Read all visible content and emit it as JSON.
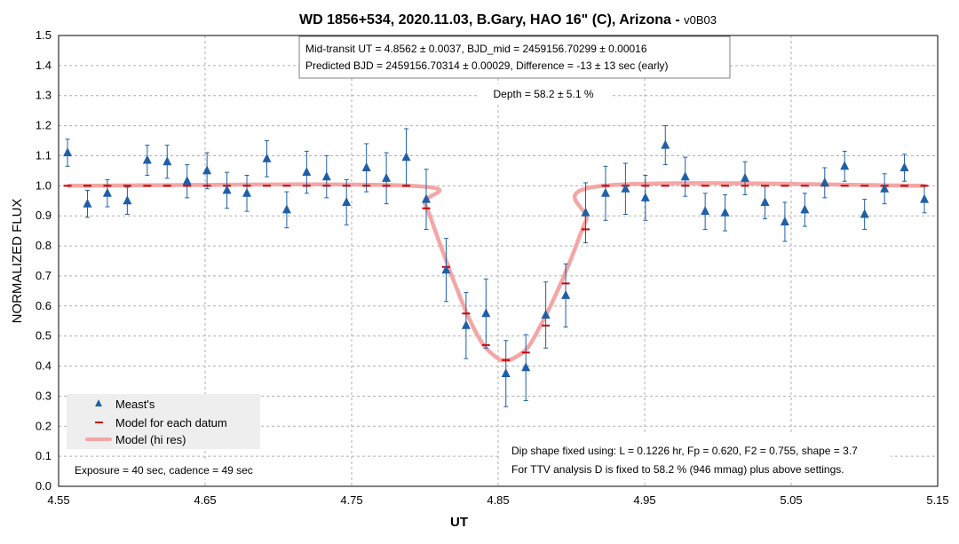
{
  "chart_data": {
    "type": "scatter",
    "title": "WD 1856+534, 2020.11.03, B.Gary, HAO 16\" (C), Arizona - ",
    "title_suffix": "v0B03",
    "xlabel": "UT",
    "ylabel": "NORMALIZED FLUX",
    "xlim": [
      4.55,
      5.15
    ],
    "ylim": [
      0.0,
      1.5
    ],
    "x_ticks": [
      "4.55",
      "4.65",
      "4.75",
      "4.85",
      "4.95",
      "5.05",
      "5.15"
    ],
    "y_ticks": [
      "0.0",
      "0.1",
      "0.2",
      "0.3",
      "0.4",
      "0.5",
      "0.6",
      "0.7",
      "0.8",
      "0.9",
      "1.0",
      "1.1",
      "1.2",
      "1.3",
      "1.4",
      "1.5"
    ],
    "grid": true,
    "legend_position": "bottom-left",
    "legend": {
      "measts": "Meast's",
      "model_datum": "Model for each datum",
      "model_hires": "Model (hi res)"
    },
    "info_box": {
      "line1": "Mid-transit UT = 4.8562 ± 0.0037, BJD_mid = 2459156.70299 ± 0.00016",
      "line2": "Predicted BJD = 2459156.70314 ± 0.00029, Difference = -13 ± 13 sec (early)"
    },
    "depth_label": "Depth = 58.2 ± 5.1 %",
    "exposure_note": "Exposure = 40 sec, cadence = 49 sec",
    "dip_note": {
      "line1": "Dip shape fixed using:  L = 0.1226 hr, Fp = 0.620, F2 = 0.755, shape = 3.7",
      "line2": "For TTV analysis D is fixed  to 58.2 % (946 mmag) plus above settings."
    },
    "colors": {
      "measts": "#1f5fa8",
      "model_datum": "#cc0000",
      "model_hires": "#f4a6a6",
      "grid": "#b0b0b0",
      "legend_bg": "#eeeeee"
    },
    "series": [
      {
        "name": "Meast's",
        "x": [
          4.5561,
          4.5697,
          4.5833,
          4.5969,
          4.6105,
          4.6241,
          4.6377,
          4.6513,
          4.6649,
          4.6785,
          4.6921,
          4.7057,
          4.7193,
          4.7329,
          4.7465,
          4.7601,
          4.7737,
          4.7873,
          4.8009,
          4.8145,
          4.8281,
          4.8417,
          4.8553,
          4.8689,
          4.8825,
          4.8961,
          4.9097,
          4.9233,
          4.9369,
          4.9505,
          4.9641,
          4.9777,
          4.9913,
          5.0049,
          5.0185,
          5.0321,
          5.0457,
          5.0593,
          5.0729,
          5.0865,
          5.1001,
          5.1137,
          5.1273,
          5.1409
        ],
        "y": [
          1.11,
          0.94,
          0.975,
          0.95,
          1.085,
          1.08,
          1.015,
          1.05,
          0.985,
          0.975,
          1.09,
          0.92,
          1.045,
          1.03,
          0.945,
          1.06,
          1.025,
          1.095,
          0.955,
          0.72,
          0.535,
          0.575,
          0.375,
          0.395,
          0.57,
          0.635,
          0.91,
          0.975,
          0.99,
          0.96,
          1.135,
          1.03,
          0.915,
          0.91,
          1.025,
          0.945,
          0.88,
          0.92,
          1.01,
          1.065,
          0.905,
          0.99,
          1.06,
          0.955
        ],
        "err": [
          0.045,
          0.045,
          0.045,
          0.045,
          0.05,
          0.055,
          0.055,
          0.06,
          0.06,
          0.06,
          0.06,
          0.06,
          0.07,
          0.07,
          0.075,
          0.08,
          0.085,
          0.095,
          0.1,
          0.105,
          0.11,
          0.115,
          0.11,
          0.11,
          0.11,
          0.105,
          0.1,
          0.09,
          0.085,
          0.075,
          0.065,
          0.065,
          0.06,
          0.06,
          0.055,
          0.055,
          0.065,
          0.055,
          0.05,
          0.05,
          0.05,
          0.05,
          0.045,
          0.045
        ]
      },
      {
        "name": "Model for each datum",
        "x": [
          4.5561,
          4.5697,
          4.5833,
          4.5969,
          4.6105,
          4.6241,
          4.6377,
          4.6513,
          4.6649,
          4.6785,
          4.6921,
          4.7057,
          4.7193,
          4.7329,
          4.7465,
          4.7601,
          4.7737,
          4.7873,
          4.8009,
          4.8145,
          4.8281,
          4.8417,
          4.8553,
          4.8689,
          4.8825,
          4.8961,
          4.9097,
          4.9233,
          4.9369,
          4.9505,
          4.9641,
          4.9777,
          4.9913,
          5.0049,
          5.0185,
          5.0321,
          5.0457,
          5.0593,
          5.0729,
          5.0865,
          5.1001,
          5.1137,
          5.1273,
          5.1409
        ],
        "y": [
          1.0,
          1.0,
          1.0,
          1.0,
          1.0,
          1.0,
          1.0,
          1.0,
          1.0,
          1.0,
          1.0,
          1.0,
          1.0,
          1.0,
          1.0,
          1.0,
          1.0,
          1.0,
          0.925,
          0.73,
          0.575,
          0.47,
          0.42,
          0.445,
          0.535,
          0.675,
          0.855,
          1.0,
          1.0,
          1.0,
          1.0,
          1.0,
          1.0,
          1.0,
          1.0,
          1.0,
          1.0,
          1.0,
          1.0,
          1.0,
          1.0,
          1.0,
          1.0,
          1.0
        ]
      },
      {
        "name": "Model (hi res)",
        "x": [
          4.557,
          4.79,
          4.8,
          4.81,
          4.82,
          4.83,
          4.84,
          4.85,
          4.855,
          4.86,
          4.87,
          4.88,
          4.89,
          4.9,
          4.91,
          4.922,
          5.141
        ],
        "y": [
          1.0,
          1.0,
          0.94,
          0.81,
          0.68,
          0.56,
          0.47,
          0.425,
          0.42,
          0.425,
          0.46,
          0.545,
          0.645,
          0.76,
          0.885,
          1.0,
          1.0
        ]
      }
    ]
  }
}
